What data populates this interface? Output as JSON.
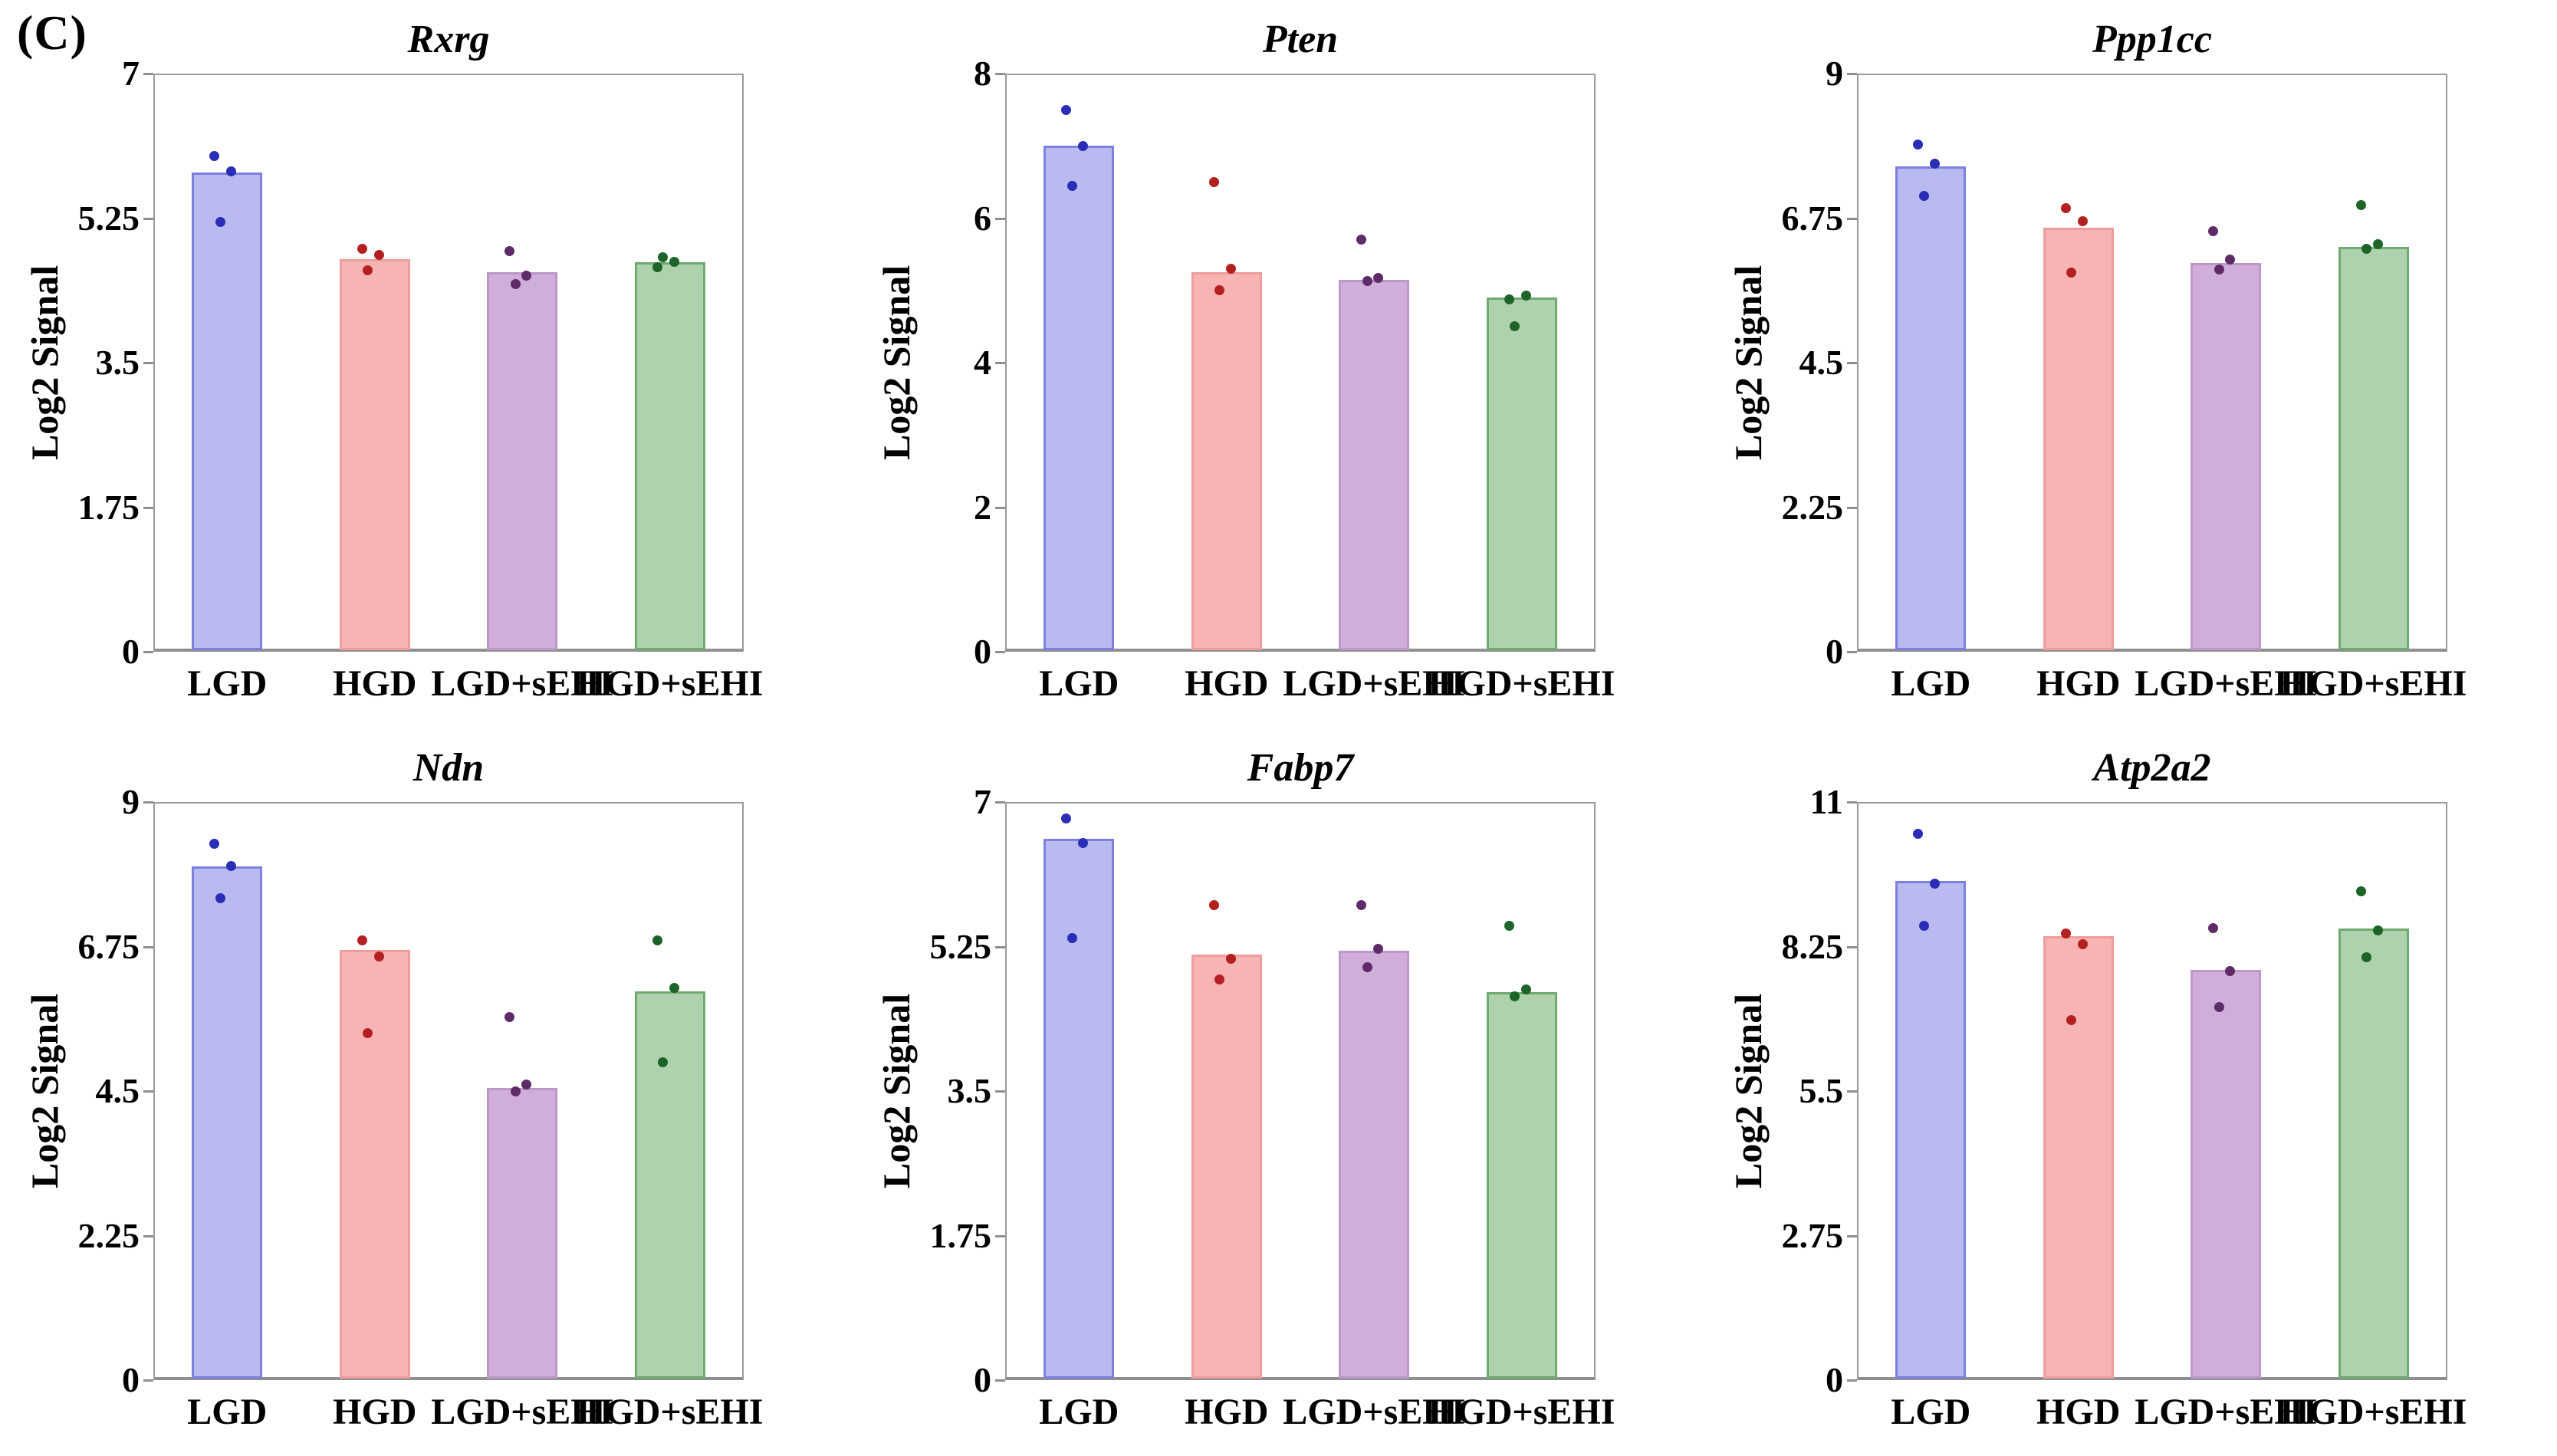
{
  "panel_label": "(C)",
  "y_axis_label": "Log2 Signal",
  "categories": [
    "LGD",
    "HGD",
    "LGD+sEHI",
    "HGD+sEHI"
  ],
  "series_styles": [
    {
      "name": "LGD",
      "fill": "#b9bbf0",
      "stroke": "#7c80e0",
      "dot": "#2a2db5"
    },
    {
      "name": "HGD",
      "fill": "#f6b4b4",
      "stroke": "#ee9c9c",
      "dot": "#b42020"
    },
    {
      "name": "LGD+sEHI",
      "fill": "#cfafda",
      "stroke": "#bd97ca",
      "dot": "#5e2a68"
    },
    {
      "name": "HGD+sEHI",
      "fill": "#aed2ae",
      "stroke": "#6faa6f",
      "dot": "#1d6428"
    }
  ],
  "chart_data": [
    {
      "type": "bar",
      "title": "Rxrg",
      "ylabel": "Log2 Signal",
      "ylim": [
        0,
        7
      ],
      "yticks": [
        0,
        1.75,
        3.5,
        5.25,
        7
      ],
      "ytick_labels": [
        "0",
        "1.75",
        "3.5",
        "5.25",
        "7"
      ],
      "categories": [
        "LGD",
        "HGD",
        "LGD+sEHI",
        "HGD+sEHI"
      ],
      "values": [
        5.8,
        4.75,
        4.6,
        4.72
      ],
      "points": [
        [
          6.0,
          5.82,
          5.2
        ],
        [
          4.88,
          4.8,
          4.62
        ],
        [
          4.85,
          4.55,
          4.45
        ],
        [
          4.66,
          4.72,
          4.78
        ]
      ]
    },
    {
      "type": "bar",
      "title": "Pten",
      "ylabel": "Log2 Signal",
      "ylim": [
        0,
        8
      ],
      "yticks": [
        0,
        2,
        4,
        6,
        8
      ],
      "ytick_labels": [
        "0",
        "2",
        "4",
        "6",
        "8"
      ],
      "categories": [
        "LGD",
        "HGD",
        "LGD+sEHI",
        "HGD+sEHI"
      ],
      "values": [
        7.0,
        5.25,
        5.15,
        4.9
      ],
      "points": [
        [
          7.5,
          7.0,
          6.45
        ],
        [
          6.5,
          5.3,
          5.0
        ],
        [
          5.7,
          5.17,
          5.13
        ],
        [
          4.88,
          4.93,
          4.5
        ]
      ]
    },
    {
      "type": "bar",
      "title": "Ppp1cc",
      "ylabel": "Log2 Signal",
      "ylim": [
        0,
        9
      ],
      "yticks": [
        0,
        2.25,
        4.5,
        6.75,
        9
      ],
      "ytick_labels": [
        "0",
        "2.25",
        "4.5",
        "6.75",
        "9"
      ],
      "categories": [
        "LGD",
        "HGD",
        "LGD+sEHI",
        "HGD+sEHI"
      ],
      "values": [
        7.55,
        6.6,
        6.05,
        6.3
      ],
      "points": [
        [
          7.9,
          7.6,
          7.1
        ],
        [
          6.9,
          6.7,
          5.9
        ],
        [
          6.55,
          6.1,
          5.95
        ],
        [
          6.95,
          6.35,
          6.27
        ]
      ]
    },
    {
      "type": "bar",
      "title": "Ndn",
      "ylabel": "Log2 Signal",
      "ylim": [
        0,
        9
      ],
      "yticks": [
        0,
        2.25,
        4.5,
        6.75,
        9
      ],
      "ytick_labels": [
        "0",
        "2.25",
        "4.5",
        "6.75",
        "9"
      ],
      "categories": [
        "LGD",
        "HGD",
        "LGD+sEHI",
        "HGD+sEHI"
      ],
      "values": [
        8.0,
        6.7,
        4.55,
        6.05
      ],
      "points": [
        [
          8.35,
          8.0,
          7.5
        ],
        [
          6.85,
          6.6,
          5.4
        ],
        [
          5.65,
          4.6,
          4.5
        ],
        [
          6.85,
          6.1,
          4.95
        ]
      ]
    },
    {
      "type": "bar",
      "title": "Fabp7",
      "ylabel": "Log2 Signal",
      "ylim": [
        0,
        7
      ],
      "yticks": [
        0,
        1.75,
        3.5,
        5.25,
        7
      ],
      "ytick_labels": [
        "0",
        "1.75",
        "3.5",
        "5.25",
        "7"
      ],
      "categories": [
        "LGD",
        "HGD",
        "LGD+sEHI",
        "HGD+sEHI"
      ],
      "values": [
        6.55,
        5.15,
        5.2,
        4.7
      ],
      "points": [
        [
          6.8,
          6.5,
          5.35
        ],
        [
          5.75,
          5.1,
          4.85
        ],
        [
          5.75,
          5.22,
          5.0
        ],
        [
          5.5,
          4.73,
          4.65
        ]
      ]
    },
    {
      "type": "bar",
      "title": "Atp2a2",
      "ylabel": "Log2 Signal",
      "ylim": [
        0,
        11
      ],
      "yticks": [
        0,
        2.75,
        5.5,
        8.25,
        11
      ],
      "ytick_labels": [
        "0",
        "2.75",
        "5.5",
        "8.25",
        "11"
      ],
      "categories": [
        "LGD",
        "HGD",
        "LGD+sEHI",
        "HGD+sEHI"
      ],
      "values": [
        9.5,
        8.45,
        7.8,
        8.6
      ],
      "points": [
        [
          10.4,
          9.45,
          8.65
        ],
        [
          8.5,
          8.3,
          6.85
        ],
        [
          8.6,
          7.78,
          7.1
        ],
        [
          9.3,
          8.55,
          8.05
        ]
      ]
    }
  ]
}
